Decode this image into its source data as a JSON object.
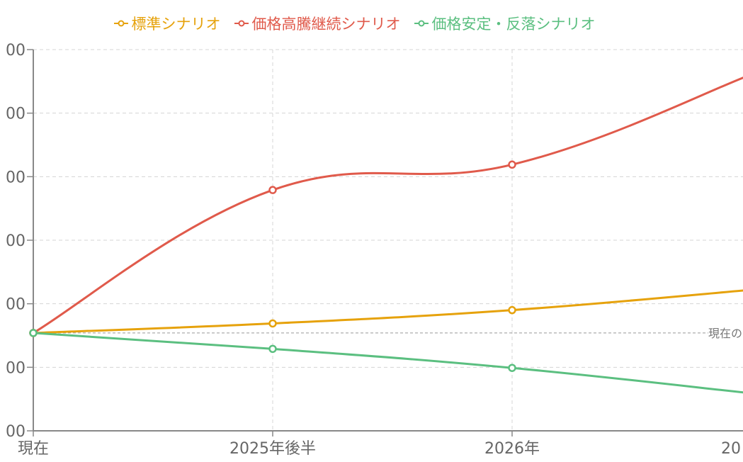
{
  "chart_data": {
    "type": "line",
    "title": "",
    "xlabel": "",
    "ylabel": "",
    "categories": [
      "現在",
      "2025年後半",
      "2026年",
      "20"
    ],
    "y_tick_labels": [
      "00",
      "00",
      "00",
      "00",
      "00",
      "00",
      "00"
    ],
    "ylim": [
      0,
      6
    ],
    "grid": true,
    "legend_position": "top",
    "smooth": true,
    "series": [
      {
        "name": "標準シナリオ",
        "color": "#e6a20c",
        "values": [
          1.54,
          1.69,
          1.9,
          2.22
        ]
      },
      {
        "name": "価格高騰継続シナリオ",
        "color": "#e05a4b",
        "values": [
          1.54,
          3.79,
          4.19,
          5.61
        ]
      },
      {
        "name": "価格安定・反落シナリオ",
        "color": "#5bbf80",
        "values": [
          1.54,
          1.29,
          0.99,
          0.59
        ]
      }
    ],
    "reference_line": {
      "value": 1.54,
      "label": "現在の"
    }
  }
}
